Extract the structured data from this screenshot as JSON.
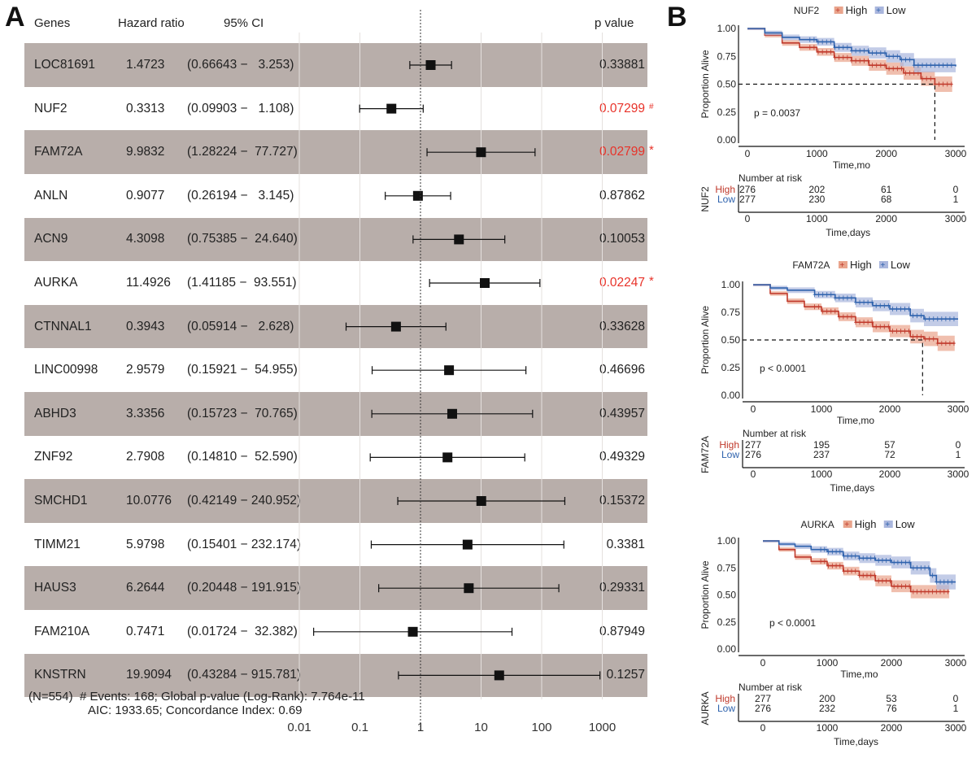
{
  "panel_labels": {
    "a": "A",
    "b": "B"
  },
  "chart_data": [
    {
      "type": "forest",
      "headers": {
        "genes": "Genes",
        "hr": "Hazard ratio",
        "ci": "95% CI",
        "p": "p value"
      },
      "x_scale": "log",
      "xlim": [
        0.01,
        1000
      ],
      "x_ticks": [
        "0.01",
        "0.1",
        "1",
        "10",
        "100",
        "1000"
      ],
      "reference_line": 1,
      "grid": true,
      "colors": {
        "band": "#b8aeaa",
        "significant": "#e8332a",
        "marker": "#111111"
      },
      "rows": [
        {
          "gene": "LOC81691",
          "hr": "1.4723",
          "lo": "0.66643",
          "hi": "3.253",
          "p": "0.33881",
          "sig": false,
          "mark": ""
        },
        {
          "gene": "NUF2",
          "hr": "0.3313",
          "lo": "0.09903",
          "hi": "1.108",
          "p": "0.07299",
          "sig": true,
          "mark": "#"
        },
        {
          "gene": "FAM72A",
          "hr": "9.9832",
          "lo": "1.28224",
          "hi": "77.727",
          "p": "0.02799",
          "sig": true,
          "mark": "*"
        },
        {
          "gene": "ANLN",
          "hr": "0.9077",
          "lo": "0.26194",
          "hi": "3.145",
          "p": "0.87862",
          "sig": false,
          "mark": ""
        },
        {
          "gene": "ACN9",
          "hr": "4.3098",
          "lo": "0.75385",
          "hi": "24.640",
          "p": "0.10053",
          "sig": false,
          "mark": ""
        },
        {
          "gene": "AURKA",
          "hr": "11.4926",
          "lo": "1.41185",
          "hi": "93.551",
          "p": "0.02247",
          "sig": true,
          "mark": "*"
        },
        {
          "gene": "CTNNAL1",
          "hr": "0.3943",
          "lo": "0.05914",
          "hi": "2.628",
          "p": "0.33628",
          "sig": false,
          "mark": ""
        },
        {
          "gene": "LINC00998",
          "hr": "2.9579",
          "lo": "0.15921",
          "hi": "54.955",
          "p": "0.46696",
          "sig": false,
          "mark": ""
        },
        {
          "gene": "ABHD3",
          "hr": "3.3356",
          "lo": "0.15723",
          "hi": "70.765",
          "p": "0.43957",
          "sig": false,
          "mark": ""
        },
        {
          "gene": "ZNF92",
          "hr": "2.7908",
          "lo": "0.14810",
          "hi": "52.590",
          "p": "0.49329",
          "sig": false,
          "mark": ""
        },
        {
          "gene": "SMCHD1",
          "hr": "10.0776",
          "lo": "0.42149",
          "hi": "240.952",
          "p": "0.15372",
          "sig": false,
          "mark": ""
        },
        {
          "gene": "TIMM21",
          "hr": "5.9798",
          "lo": "0.15401",
          "hi": "232.174",
          "p": "0.3381",
          "sig": false,
          "mark": ""
        },
        {
          "gene": "HAUS3",
          "hr": "6.2644",
          "lo": "0.20448",
          "hi": "191.915",
          "p": "0.29331",
          "sig": false,
          "mark": ""
        },
        {
          "gene": "FAM210A",
          "hr": "0.7471",
          "lo": "0.01724",
          "hi": "32.382",
          "p": "0.87949",
          "sig": false,
          "mark": ""
        },
        {
          "gene": "KNSTRN",
          "hr": "19.9094",
          "lo": "0.43284",
          "hi": "915.781",
          "p": "0.1257",
          "sig": false,
          "mark": ""
        }
      ],
      "footer": {
        "line1": "(N=554)  # Events: 168; Global p-value (Log-Rank): 7.764e-11",
        "line2": "AIC: 1933.65; Concordance Index: 0.69"
      }
    },
    {
      "type": "kaplan-meier",
      "title": "NUF2",
      "legend": [
        "High",
        "Low"
      ],
      "colors": {
        "High": "#c0392b",
        "Low": "#2e62ad"
      },
      "ylabel": "Proportion Alive",
      "xlabel": "Time,mo",
      "y_ticks": [
        "0.00",
        "0.25",
        "0.50",
        "0.75",
        "1.00"
      ],
      "x_ticks": [
        "0",
        "1000",
        "2000",
        "3000"
      ],
      "p_text": "p = 0.0037",
      "median_line": 2700,
      "series": [
        {
          "name": "High",
          "points": [
            [
              0,
              1
            ],
            [
              250,
              0.94
            ],
            [
              500,
              0.87
            ],
            [
              750,
              0.83
            ],
            [
              1000,
              0.79
            ],
            [
              1250,
              0.74
            ],
            [
              1500,
              0.71
            ],
            [
              1750,
              0.67
            ],
            [
              2000,
              0.64
            ],
            [
              2250,
              0.6
            ],
            [
              2500,
              0.55
            ],
            [
              2700,
              0.5
            ],
            [
              2950,
              0.5
            ]
          ]
        },
        {
          "name": "Low",
          "points": [
            [
              0,
              1
            ],
            [
              250,
              0.96
            ],
            [
              500,
              0.92
            ],
            [
              750,
              0.9
            ],
            [
              1000,
              0.88
            ],
            [
              1250,
              0.83
            ],
            [
              1500,
              0.8
            ],
            [
              1750,
              0.78
            ],
            [
              2000,
              0.75
            ],
            [
              2200,
              0.72
            ],
            [
              2400,
              0.67
            ],
            [
              3000,
              0.66
            ]
          ]
        }
      ],
      "risk_table": {
        "title": "Number at risk",
        "strata_label": "NUF2",
        "xlabel": "Time,days",
        "rows": [
          {
            "name": "High",
            "values": [
              "276",
              "202",
              "61",
              "0"
            ]
          },
          {
            "name": "Low",
            "values": [
              "277",
              "230",
              "68",
              "1"
            ]
          }
        ]
      }
    },
    {
      "type": "kaplan-meier",
      "title": "FAM72A",
      "legend": [
        "High",
        "Low"
      ],
      "colors": {
        "High": "#c0392b",
        "Low": "#2e62ad"
      },
      "ylabel": "Proportion Alive",
      "xlabel": "Time,mo",
      "y_ticks": [
        "0.00",
        "0.25",
        "0.50",
        "0.75",
        "1.00"
      ],
      "x_ticks": [
        "0",
        "1000",
        "2000",
        "3000"
      ],
      "p_text": "p < 0.0001",
      "median_line": 2480,
      "series": [
        {
          "name": "High",
          "points": [
            [
              0,
              1
            ],
            [
              250,
              0.92
            ],
            [
              500,
              0.85
            ],
            [
              750,
              0.8
            ],
            [
              1000,
              0.76
            ],
            [
              1250,
              0.71
            ],
            [
              1500,
              0.66
            ],
            [
              1750,
              0.62
            ],
            [
              2000,
              0.58
            ],
            [
              2300,
              0.53
            ],
            [
              2500,
              0.51
            ],
            [
              2700,
              0.47
            ],
            [
              2950,
              0.47
            ]
          ]
        },
        {
          "name": "Low",
          "points": [
            [
              0,
              1
            ],
            [
              250,
              0.97
            ],
            [
              500,
              0.95
            ],
            [
              900,
              0.91
            ],
            [
              1200,
              0.88
            ],
            [
              1500,
              0.84
            ],
            [
              1750,
              0.81
            ],
            [
              2000,
              0.78
            ],
            [
              2300,
              0.72
            ],
            [
              2500,
              0.69
            ],
            [
              3000,
              0.69
            ]
          ]
        }
      ],
      "risk_table": {
        "title": "Number at risk",
        "strata_label": "FAM72A",
        "xlabel": "Time,days",
        "rows": [
          {
            "name": "High",
            "values": [
              "277",
              "195",
              "57",
              "0"
            ]
          },
          {
            "name": "Low",
            "values": [
              "276",
              "237",
              "72",
              "1"
            ]
          }
        ]
      }
    },
    {
      "type": "kaplan-meier",
      "title": "AURKA",
      "legend": [
        "High",
        "Low"
      ],
      "colors": {
        "High": "#c0392b",
        "Low": "#2e62ad"
      },
      "ylabel": "Proportion Alive",
      "xlabel": "Time,mo",
      "y_ticks": [
        "0.00",
        "0.25",
        "0.50",
        "0.75",
        "1.00"
      ],
      "x_ticks": [
        "0",
        "1000",
        "2000",
        "3000"
      ],
      "p_text": "p < 0.0001",
      "median_line": null,
      "series": [
        {
          "name": "High",
          "points": [
            [
              0,
              1
            ],
            [
              250,
              0.92
            ],
            [
              500,
              0.85
            ],
            [
              750,
              0.81
            ],
            [
              1000,
              0.77
            ],
            [
              1250,
              0.72
            ],
            [
              1500,
              0.68
            ],
            [
              1750,
              0.63
            ],
            [
              2000,
              0.58
            ],
            [
              2300,
              0.53
            ],
            [
              2900,
              0.53
            ]
          ]
        },
        {
          "name": "Low",
          "points": [
            [
              0,
              1
            ],
            [
              250,
              0.97
            ],
            [
              500,
              0.95
            ],
            [
              750,
              0.92
            ],
            [
              1000,
              0.9
            ],
            [
              1250,
              0.86
            ],
            [
              1500,
              0.84
            ],
            [
              1750,
              0.82
            ],
            [
              2000,
              0.8
            ],
            [
              2300,
              0.75
            ],
            [
              2600,
              0.68
            ],
            [
              2700,
              0.62
            ],
            [
              3000,
              0.62
            ]
          ]
        }
      ],
      "risk_table": {
        "title": "Number at risk",
        "strata_label": "AURKA",
        "xlabel": "Time,days",
        "rows": [
          {
            "name": "High",
            "values": [
              "277",
              "200",
              "53",
              "0"
            ]
          },
          {
            "name": "Low",
            "values": [
              "276",
              "232",
              "76",
              "1"
            ]
          }
        ]
      }
    }
  ]
}
